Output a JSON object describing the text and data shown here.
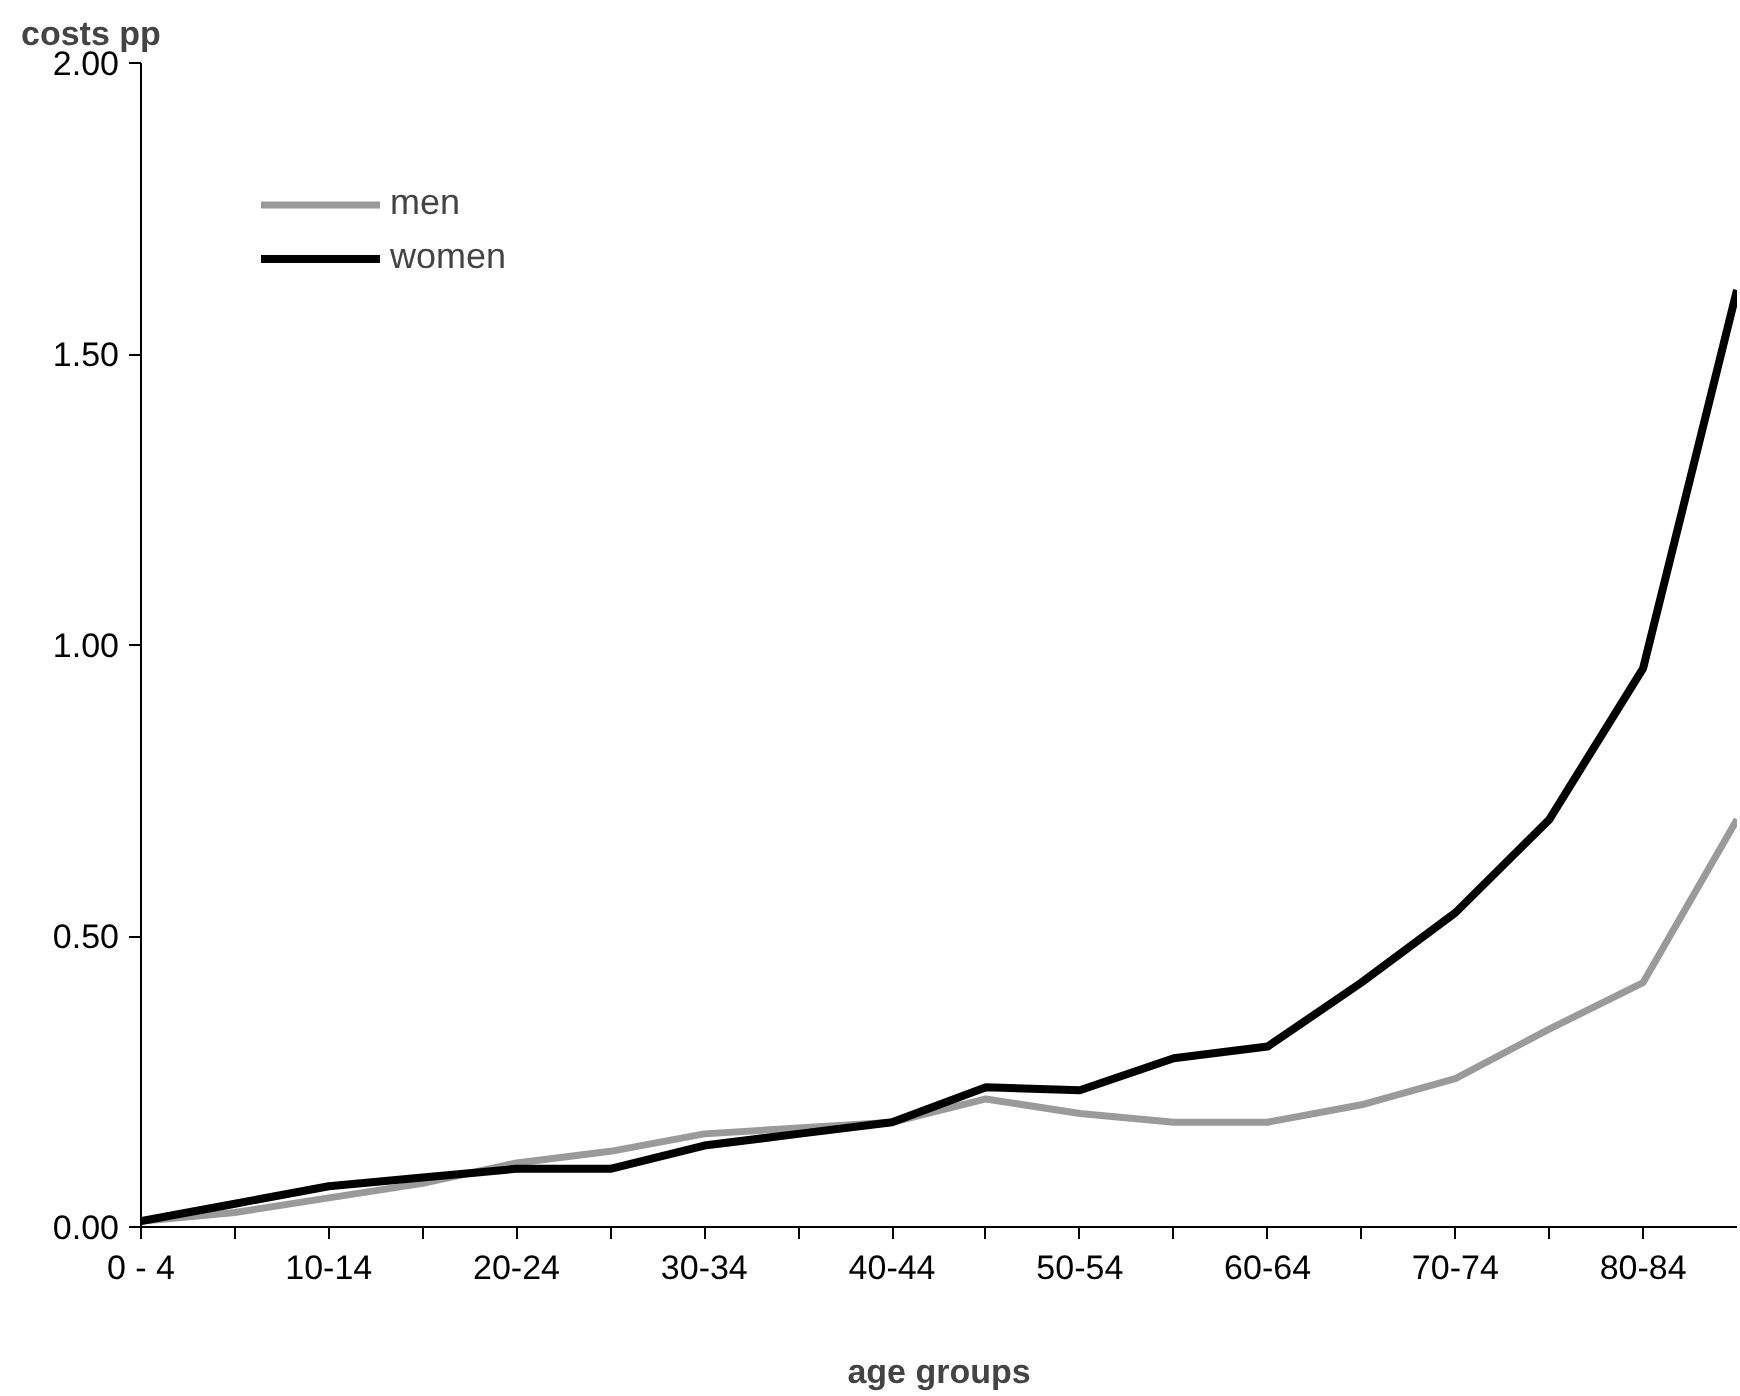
{
  "chart_data": {
    "type": "line",
    "ylabel": "costs pp",
    "xlabel": "age groups",
    "categories": [
      "0 - 4",
      null,
      "10-14",
      null,
      "20-24",
      null,
      "30-34",
      null,
      "40-44",
      null,
      "50-54",
      null,
      "60-64",
      null,
      "70-74",
      null,
      "80-84",
      null
    ],
    "series": [
      {
        "name": "men",
        "color": "#9a9a9a",
        "values": [
          0.01,
          0.025,
          0.05,
          0.075,
          0.11,
          0.13,
          0.16,
          0.17,
          0.18,
          0.22,
          0.195,
          0.18,
          0.18,
          0.21,
          0.255,
          0.34,
          0.42,
          0.7
        ]
      },
      {
        "name": "women",
        "color": "#000000",
        "values": [
          0.01,
          0.04,
          0.07,
          0.085,
          0.1,
          0.1,
          0.14,
          0.16,
          0.18,
          0.24,
          0.235,
          0.29,
          0.31,
          0.42,
          0.54,
          0.7,
          0.96,
          1.61
        ]
      }
    ],
    "ylim": [
      0,
      2
    ],
    "yticks": [
      {
        "value": 0,
        "label": "0.00"
      },
      {
        "value": 0.5,
        "label": "0.50"
      },
      {
        "value": 1,
        "label": "1.00"
      },
      {
        "value": 1.5,
        "label": "1.50"
      },
      {
        "value": 2,
        "label": "2.00"
      }
    ],
    "legend": "top left",
    "grid": false,
    "marker": "none",
    "line_style": "solid"
  }
}
